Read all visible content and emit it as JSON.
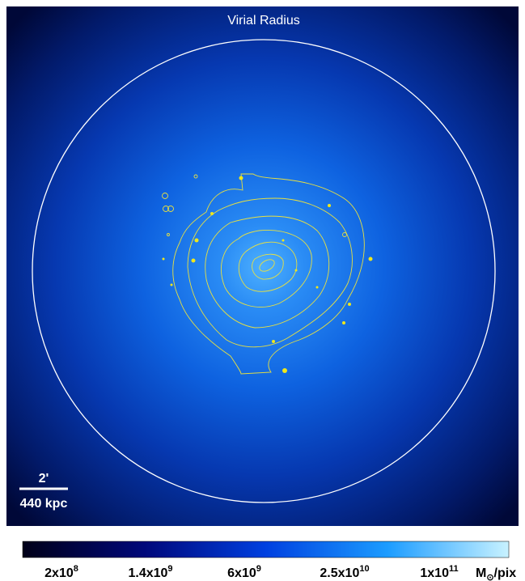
{
  "map": {
    "circle_label": "Virial Radius",
    "scale_bar": {
      "angle": "2'",
      "distance": "440 kpc"
    }
  },
  "colorbar": {
    "ticks": [
      {
        "base": "2x10",
        "exp": "8"
      },
      {
        "base": "1.4x10",
        "exp": "9"
      },
      {
        "base": "6x10",
        "exp": "9"
      },
      {
        "base": "2.5x10",
        "exp": "10"
      },
      {
        "base": "1x10",
        "exp": "11"
      }
    ],
    "unit": {
      "base": "M",
      "sub": "⊙",
      "rest": "/pix"
    }
  }
}
